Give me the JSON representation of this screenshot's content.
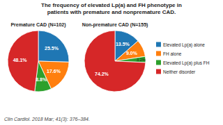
{
  "title": "The frequency of elevated Lp(a) and FH phenotype in\npatients with premature and nonpremature CAD.",
  "annotations": [
    "Clin Cardiol. 2018 Mar; 41(3): 376–384."
  ],
  "chart_data": [
    {
      "type": "pie",
      "title": "Premature CAD (N=102)",
      "categories": [
        "Elevated Lp(a) alone",
        "FH alone",
        "Elevated Lp(a) plus FH",
        "Neither disorder"
      ],
      "values": [
        25.5,
        17.6,
        8.8,
        48.1
      ],
      "value_labels": [
        "25.5%",
        "17.6%",
        "8.8%",
        "48.1%"
      ],
      "data_labels": true,
      "legend": "right"
    },
    {
      "type": "pie",
      "title": "Non-premature CAD (N=155)",
      "categories": [
        "Elevated Lp(a) alone",
        "FH alone",
        "Elevated Lp(a) plus FH",
        "Neither disorder"
      ],
      "values": [
        13.5,
        9.0,
        3.2,
        74.2
      ],
      "value_labels": [
        "13.5%",
        "9.0%",
        "3.2%",
        "74.2%"
      ],
      "data_labels": true
    }
  ]
}
